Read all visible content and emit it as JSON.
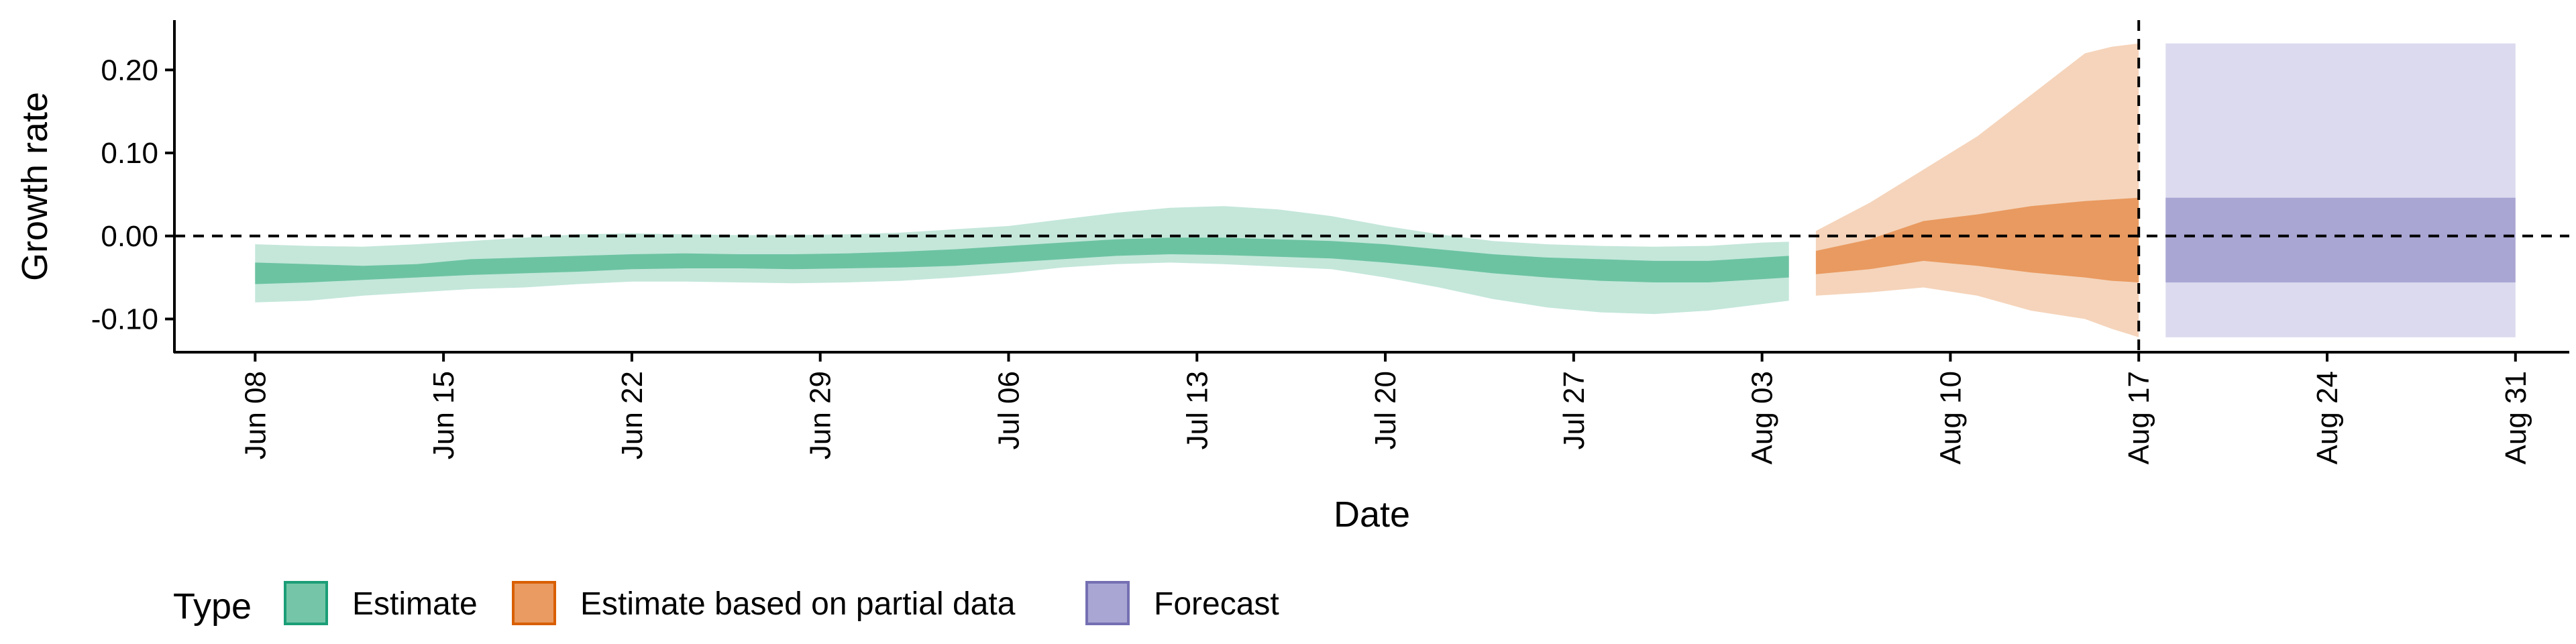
{
  "chart_data": {
    "type": "area",
    "xlabel": "Date",
    "ylabel": "Growth rate",
    "x_range": [
      "2021-06-05",
      "2021-09-02"
    ],
    "ylim": [
      -0.14,
      0.26
    ],
    "x_ticks": [
      {
        "date": "2021-06-08",
        "label": "Jun 08"
      },
      {
        "date": "2021-06-15",
        "label": "Jun 15"
      },
      {
        "date": "2021-06-22",
        "label": "Jun 22"
      },
      {
        "date": "2021-06-29",
        "label": "Jun 29"
      },
      {
        "date": "2021-07-06",
        "label": "Jul 06"
      },
      {
        "date": "2021-07-13",
        "label": "Jul 13"
      },
      {
        "date": "2021-07-20",
        "label": "Jul 20"
      },
      {
        "date": "2021-07-27",
        "label": "Jul 27"
      },
      {
        "date": "2021-08-03",
        "label": "Aug 03"
      },
      {
        "date": "2021-08-10",
        "label": "Aug 10"
      },
      {
        "date": "2021-08-17",
        "label": "Aug 17"
      },
      {
        "date": "2021-08-24",
        "label": "Aug 24"
      },
      {
        "date": "2021-08-31",
        "label": "Aug 31"
      }
    ],
    "y_ticks": [
      {
        "value": 0.2,
        "label": "0.20"
      },
      {
        "value": 0.1,
        "label": "0.10"
      },
      {
        "value": 0.0,
        "label": "0.00"
      },
      {
        "value": -0.1,
        "label": "-0.10"
      }
    ],
    "reference_lines": {
      "horizontal_y": 0.0,
      "vertical_date": "2021-08-17"
    },
    "grid": false,
    "legend": {
      "title": "Type",
      "position": "bottom-left",
      "entries": [
        {
          "label": "Estimate",
          "fill": "#75c6a8",
          "border": "#1b9e77"
        },
        {
          "label": "Estimate based on partial data",
          "fill": "#e99b62",
          "border": "#d95f02"
        },
        {
          "label": "Forecast",
          "fill": "#a9a6d3",
          "border": "#7570b3"
        }
      ]
    },
    "series": [
      {
        "name": "Estimate",
        "inner_color": "#6cc3a2",
        "outer_color": "#c4e7da",
        "points": [
          {
            "x": "2021-06-08",
            "lo90": -0.08,
            "lo50": -0.058,
            "hi50": -0.032,
            "hi90": -0.01
          },
          {
            "x": "2021-06-10",
            "lo90": -0.078,
            "lo50": -0.056,
            "hi50": -0.034,
            "hi90": -0.012
          },
          {
            "x": "2021-06-12",
            "lo90": -0.072,
            "lo50": -0.053,
            "hi50": -0.036,
            "hi90": -0.013
          },
          {
            "x": "2021-06-14",
            "lo90": -0.068,
            "lo50": -0.05,
            "hi50": -0.034,
            "hi90": -0.01
          },
          {
            "x": "2021-06-16",
            "lo90": -0.064,
            "lo50": -0.047,
            "hi50": -0.028,
            "hi90": -0.006
          },
          {
            "x": "2021-06-18",
            "lo90": -0.062,
            "lo50": -0.045,
            "hi50": -0.026,
            "hi90": -0.002
          },
          {
            "x": "2021-06-20",
            "lo90": -0.058,
            "lo50": -0.043,
            "hi50": -0.024,
            "hi90": 0.002
          },
          {
            "x": "2021-06-22",
            "lo90": -0.055,
            "lo50": -0.04,
            "hi50": -0.022,
            "hi90": 0.003
          },
          {
            "x": "2021-06-24",
            "lo90": -0.055,
            "lo50": -0.039,
            "hi50": -0.021,
            "hi90": 0.002
          },
          {
            "x": "2021-06-26",
            "lo90": -0.056,
            "lo50": -0.039,
            "hi50": -0.022,
            "hi90": 0.001
          },
          {
            "x": "2021-06-28",
            "lo90": -0.057,
            "lo50": -0.04,
            "hi50": -0.022,
            "hi90": 0.001
          },
          {
            "x": "2021-06-30",
            "lo90": -0.056,
            "lo50": -0.039,
            "hi50": -0.021,
            "hi90": 0.002
          },
          {
            "x": "2021-07-02",
            "lo90": -0.054,
            "lo50": -0.038,
            "hi50": -0.019,
            "hi90": 0.004
          },
          {
            "x": "2021-07-04",
            "lo90": -0.05,
            "lo50": -0.036,
            "hi50": -0.016,
            "hi90": 0.008
          },
          {
            "x": "2021-07-06",
            "lo90": -0.045,
            "lo50": -0.032,
            "hi50": -0.012,
            "hi90": 0.012
          },
          {
            "x": "2021-07-08",
            "lo90": -0.038,
            "lo50": -0.028,
            "hi50": -0.008,
            "hi90": 0.02
          },
          {
            "x": "2021-07-10",
            "lo90": -0.034,
            "lo50": -0.024,
            "hi50": -0.004,
            "hi90": 0.028
          },
          {
            "x": "2021-07-12",
            "lo90": -0.032,
            "lo50": -0.022,
            "hi50": -0.002,
            "hi90": 0.034
          },
          {
            "x": "2021-07-14",
            "lo90": -0.034,
            "lo50": -0.023,
            "hi50": -0.002,
            "hi90": 0.036
          },
          {
            "x": "2021-07-16",
            "lo90": -0.037,
            "lo50": -0.025,
            "hi50": -0.004,
            "hi90": 0.032
          },
          {
            "x": "2021-07-18",
            "lo90": -0.04,
            "lo50": -0.027,
            "hi50": -0.006,
            "hi90": 0.024
          },
          {
            "x": "2021-07-20",
            "lo90": -0.05,
            "lo50": -0.032,
            "hi50": -0.01,
            "hi90": 0.012
          },
          {
            "x": "2021-07-22",
            "lo90": -0.062,
            "lo50": -0.038,
            "hi50": -0.016,
            "hi90": 0.002
          },
          {
            "x": "2021-07-24",
            "lo90": -0.076,
            "lo50": -0.045,
            "hi50": -0.022,
            "hi90": -0.006
          },
          {
            "x": "2021-07-26",
            "lo90": -0.086,
            "lo50": -0.05,
            "hi50": -0.026,
            "hi90": -0.01
          },
          {
            "x": "2021-07-28",
            "lo90": -0.092,
            "lo50": -0.054,
            "hi50": -0.028,
            "hi90": -0.012
          },
          {
            "x": "2021-07-30",
            "lo90": -0.094,
            "lo50": -0.056,
            "hi50": -0.03,
            "hi90": -0.013
          },
          {
            "x": "2021-08-01",
            "lo90": -0.09,
            "lo50": -0.056,
            "hi50": -0.03,
            "hi90": -0.012
          },
          {
            "x": "2021-08-03",
            "lo90": -0.082,
            "lo50": -0.052,
            "hi50": -0.026,
            "hi90": -0.008
          },
          {
            "x": "2021-08-04",
            "lo90": -0.078,
            "lo50": -0.05,
            "hi50": -0.024,
            "hi90": -0.007
          }
        ]
      },
      {
        "name": "Estimate based on partial data",
        "inner_color": "#e99a60",
        "outer_color": "#f5d4bb",
        "points": [
          {
            "x": "2021-08-05",
            "lo90": -0.072,
            "lo50": -0.046,
            "hi50": -0.018,
            "hi90": 0.006
          },
          {
            "x": "2021-08-07",
            "lo90": -0.068,
            "lo50": -0.04,
            "hi50": -0.004,
            "hi90": 0.04
          },
          {
            "x": "2021-08-09",
            "lo90": -0.062,
            "lo50": -0.03,
            "hi50": 0.018,
            "hi90": 0.08
          },
          {
            "x": "2021-08-11",
            "lo90": -0.072,
            "lo50": -0.036,
            "hi50": 0.026,
            "hi90": 0.12
          },
          {
            "x": "2021-08-13",
            "lo90": -0.09,
            "lo50": -0.044,
            "hi50": 0.036,
            "hi90": 0.17
          },
          {
            "x": "2021-08-15",
            "lo90": -0.1,
            "lo50": -0.05,
            "hi50": 0.042,
            "hi90": 0.22
          },
          {
            "x": "2021-08-16",
            "lo90": -0.112,
            "lo50": -0.054,
            "hi50": 0.044,
            "hi90": 0.228
          },
          {
            "x": "2021-08-17",
            "lo90": -0.122,
            "lo50": -0.056,
            "hi50": 0.046,
            "hi90": 0.232
          }
        ]
      },
      {
        "name": "Forecast",
        "inner_color": "#a9a6d3",
        "outer_color": "#dbdaee",
        "points": [
          {
            "x": "2021-08-18",
            "lo90": -0.122,
            "lo50": -0.056,
            "hi50": 0.046,
            "hi90": 0.232
          },
          {
            "x": "2021-08-31",
            "lo90": -0.122,
            "lo50": -0.056,
            "hi50": 0.046,
            "hi90": 0.232
          }
        ]
      }
    ]
  }
}
